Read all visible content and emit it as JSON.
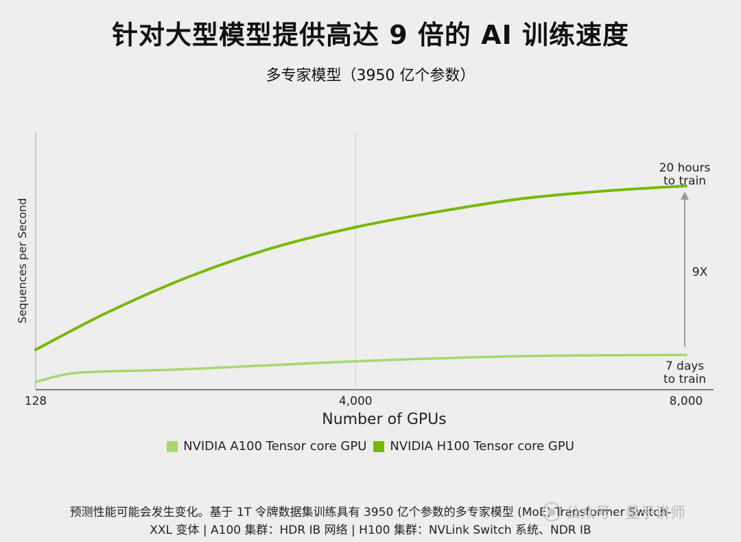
{
  "header": {
    "title": "针对大型模型提供高达 9 倍的 AI 训练速度",
    "subtitle": "多专家模型（3950 亿个参数）"
  },
  "chart_data": {
    "type": "line",
    "xlabel": "Number of GPUs",
    "ylabel": "Sequences per Second",
    "xlim": [
      128,
      8000
    ],
    "ylim": [
      0,
      1
    ],
    "x_ticks": [
      {
        "value": 128,
        "label": "128"
      },
      {
        "value": 4000,
        "label": "4,000"
      },
      {
        "value": 8000,
        "label": "8,000"
      }
    ],
    "grid_x": [
      4000
    ],
    "series": [
      {
        "name": "NVIDIA A100 Tensor core GPU",
        "color": "#a5d86e",
        "x": [
          128,
          500,
          900,
          2000,
          4000,
          6000,
          8000
        ],
        "y": [
          0.03,
          0.06,
          0.07,
          0.08,
          0.11,
          0.13,
          0.135
        ]
      },
      {
        "name": "NVIDIA H100 Tensor core GPU",
        "color": "#76b900",
        "x": [
          128,
          1000,
          2000,
          3000,
          4000,
          5000,
          6000,
          7000,
          8000
        ],
        "y": [
          0.155,
          0.3,
          0.44,
          0.55,
          0.63,
          0.69,
          0.74,
          0.77,
          0.79
        ]
      }
    ],
    "annotations": {
      "top": [
        "20 hours",
        "to train"
      ],
      "bottom": [
        "7 days",
        "to train"
      ],
      "speedup": "9X"
    }
  },
  "legend": {
    "items": [
      {
        "label": "NVIDIA A100 Tensor core GPU",
        "color": "#a5d86e"
      },
      {
        "label": "NVIDIA H100 Tensor core GPU",
        "color": "#76b900"
      }
    ]
  },
  "footnote": {
    "line1": "预测性能可能会发生变化。基于 1T 令牌数据集训练具有 3950 亿个参数的多专家模型 (MoE) Transformer Switch-",
    "line2": "XXL 变体 | A100 集群：HDR IB 网络 | H100 集群：NVLink Switch 系统、NDR IB"
  },
  "watermark": {
    "text": "公众号 · 量子讲师"
  }
}
